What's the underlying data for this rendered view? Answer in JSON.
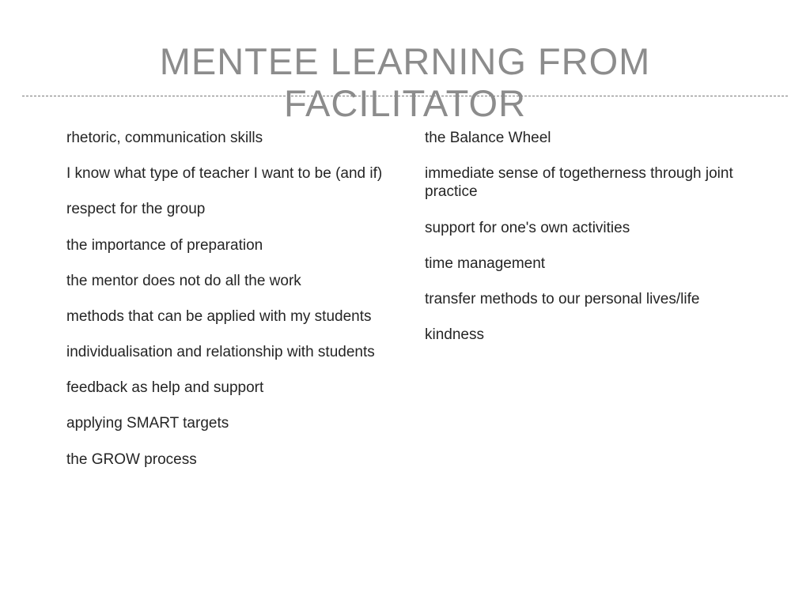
{
  "title": {
    "line1": "MENTEE LEARNING FROM",
    "line2": "FACILITATOR"
  },
  "left_column": [
    "rhetoric, communication skills",
    "I know what type of teacher I want to be (and if)",
    "respect for the group",
    "the importance of preparation",
    "the mentor does not do all the work",
    "methods that can be applied with my students",
    "individualisation and relationship with students",
    "feedback as help and support",
    "applying SMART targets",
    "the GROW process"
  ],
  "right_column": [
    "the Balance Wheel",
    "immediate sense of togetherness through joint practice",
    "support for one's own activities",
    "time management",
    "transfer methods to our personal lives/life",
    "kindness"
  ],
  "colors": {
    "title_color": "#8c8c8c",
    "body_color": "#252525",
    "divider_color": "#7a7a7a",
    "background": "#ffffff"
  },
  "font_sizes": {
    "title_pt": 47,
    "body_pt": 19
  }
}
